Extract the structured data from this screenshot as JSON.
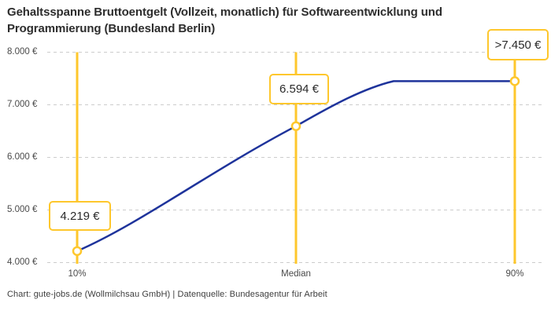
{
  "header": {
    "title": "Gehaltsspanne Bruttoentgelt (Vollzeit, monatlich) für Softwareentwicklung und Programmierung (Bundesland Berlin)"
  },
  "footer": {
    "credit": "Chart: gute-jobs.de (Wollmilchsau GmbH) | Datenquelle: Bundesagentur für Arbeit"
  },
  "chart_data": {
    "type": "line",
    "title": "Gehaltsspanne Bruttoentgelt (Vollzeit, monatlich) für Softwareentwicklung und Programmierung (Bundesland Berlin)",
    "categories": [
      "10%",
      "Median",
      "90%"
    ],
    "values": [
      4219,
      6594,
      7450
    ],
    "value_labels": [
      "4.219 €",
      "6.594 €",
      ">7.450 €"
    ],
    "ylim": [
      4000,
      8000
    ],
    "yticks": [
      4000,
      5000,
      6000,
      7000,
      8000
    ],
    "ytick_labels": [
      "4.000 €",
      "5.000 €",
      "6.000 €",
      "7.000 €",
      "8.000 €"
    ],
    "xlabel": "",
    "ylabel": "",
    "grid": "horizontal-dashed",
    "legend": "none",
    "colors": {
      "line": "#1E339B",
      "vertical_marker_lines": "#FEC72C",
      "marker_stroke": "#FEC72C",
      "marker_fill": "#FFFFFF",
      "grid": "#CCCCCC",
      "label_box_border": "#FEC72C",
      "label_box_bg": "#FFFFFF",
      "title_text": "#2D2D2D",
      "axis_text": "#4A4A4A"
    }
  }
}
